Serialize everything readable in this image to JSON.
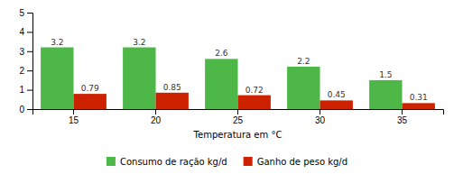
{
  "chart_data": {
    "type": "bar",
    "categories": [
      "15",
      "20",
      "25",
      "30",
      "35"
    ],
    "series": [
      {
        "name": "Consumo de ração kg/d",
        "color": "#4db848",
        "values": [
          3.2,
          3.2,
          2.6,
          2.2,
          1.5
        ]
      },
      {
        "name": "Ganho de peso kg/d",
        "color": "#cc2200",
        "values": [
          0.79,
          0.85,
          0.72,
          0.45,
          0.31
        ]
      }
    ],
    "xlabel": "Temperatura em °C",
    "ylim": [
      0,
      5
    ],
    "yticks": [
      0,
      1,
      2,
      3,
      4,
      5
    ],
    "grid": false,
    "legend": "bottom",
    "data_labels": true
  }
}
